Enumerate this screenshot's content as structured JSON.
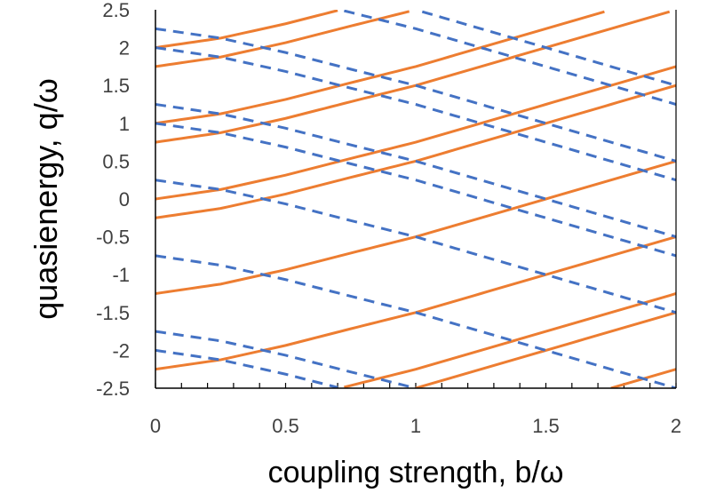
{
  "chart_data": {
    "type": "line",
    "xlabel": "coupling strength, b/ω",
    "ylabel": "quasienergy, q/ω",
    "xlim": [
      0,
      2
    ],
    "ylim": [
      -2.5,
      2.5
    ],
    "x_ticks": [
      "0",
      "0.5",
      "1",
      "1.5",
      "2"
    ],
    "y_ticks": [
      "2.5",
      "2",
      "1.5",
      "1",
      "0.5",
      "0",
      "-0.5",
      "-1",
      "-1.5",
      "-2",
      "-2.5"
    ],
    "x_minor_step": 0.1,
    "grid": false,
    "legend": "none",
    "colors": {
      "solid": "#ED7D31",
      "dashed": "#4472C4",
      "axis": "#000000"
    },
    "series": [
      {
        "style": "solid",
        "offsets": [
          -2.25,
          -1.25,
          -0.25,
          0.75,
          1.75
        ],
        "x": [
          0,
          0.25,
          0.5,
          0.75,
          1,
          1.5,
          2
        ],
        "y_rel": [
          0,
          0.125,
          0.315,
          0.535,
          0.75,
          1.25,
          1.75
        ]
      },
      {
        "style": "dashed",
        "offsets": [
          -1.75,
          -0.75,
          0.25,
          1.25,
          2.25
        ],
        "x": [
          0,
          0.25,
          0.5,
          0.75,
          1,
          1.5,
          2
        ],
        "y_rel": [
          0,
          -0.125,
          -0.315,
          -0.535,
          -0.75,
          -1.25,
          -1.75
        ]
      }
    ]
  }
}
